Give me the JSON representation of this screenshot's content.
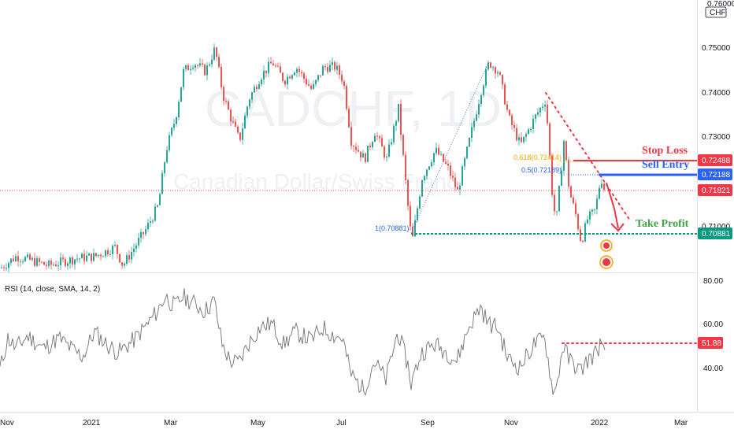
{
  "watermark": {
    "symbol": "CADCHF, 1D",
    "description": "Canadian Dollar/Swiss Franc"
  },
  "price_axis": {
    "currency": "CHF",
    "top_partial": "0.76000",
    "ticks": [
      "0.75000",
      "0.74000",
      "0.73000"
    ],
    "hidden_tick": "0.71000"
  },
  "labels": {
    "stop_loss": {
      "text": "Stop Loss",
      "value": "0.72488"
    },
    "sell_entry": {
      "text": "Sell Entry",
      "value": "0.72188"
    },
    "take_profit": {
      "text": "Take Profit",
      "value": "0.70881"
    },
    "current_price": "0.71821",
    "fib_0618": "0.618(0.72414)",
    "fib_05": "0.5(0.72189)",
    "fib_1": "1(0.70881)"
  },
  "rsi": {
    "title": "RSI (14, close, SMA, 14, 2)",
    "ticks": [
      "80.00",
      "60.00",
      "40.00"
    ],
    "level_label": "51.88"
  },
  "time_axis": [
    "Nov",
    "2021",
    "Mar",
    "May",
    "Jul",
    "Sep",
    "Nov",
    "2022",
    "Mar"
  ],
  "colors": {
    "up": "#26a69a",
    "down": "#ef5350",
    "stop": "#f23645",
    "entry": "#2962ff",
    "tp": "#089981",
    "rsi": "#7e7e7e",
    "fib": "#f7a600"
  },
  "chart_data": [
    {
      "type": "candlestick",
      "title": "CADCHF, 1D",
      "subtitle": "Canadian Dollar/Swiss Franc",
      "ylabel": "CHF",
      "ylim": [
        0.7025,
        0.7615
      ],
      "x_ticks": [
        "Nov",
        "2021",
        "Mar",
        "May",
        "Jul",
        "Sep",
        "Nov",
        "2022",
        "Mar"
      ],
      "y_ticks": [
        0.75,
        0.74,
        0.73
      ],
      "anchors": [
        [
          0,
          0.7035
        ],
        [
          20,
          0.706
        ],
        [
          60,
          0.704
        ],
        [
          95,
          0.7055
        ],
        [
          120,
          0.706
        ],
        [
          145,
          0.708
        ],
        [
          155,
          0.704
        ],
        [
          185,
          0.712
        ],
        [
          200,
          0.717
        ],
        [
          210,
          0.729
        ],
        [
          222,
          0.736
        ],
        [
          232,
          0.746
        ],
        [
          245,
          0.748
        ],
        [
          260,
          0.746
        ],
        [
          272,
          0.751
        ],
        [
          282,
          0.741
        ],
        [
          292,
          0.736
        ],
        [
          303,
          0.731
        ],
        [
          315,
          0.74
        ],
        [
          330,
          0.745
        ],
        [
          345,
          0.748
        ],
        [
          360,
          0.744
        ],
        [
          375,
          0.747
        ],
        [
          395,
          0.742
        ],
        [
          410,
          0.747
        ],
        [
          425,
          0.747
        ],
        [
          435,
          0.744
        ],
        [
          445,
          0.731
        ],
        [
          462,
          0.727
        ],
        [
          475,
          0.733
        ],
        [
          490,
          0.727
        ],
        [
          505,
          0.738
        ],
        [
          518,
          0.715
        ],
        [
          522,
          0.7088
        ],
        [
          535,
          0.723
        ],
        [
          552,
          0.729
        ],
        [
          568,
          0.725
        ],
        [
          580,
          0.72
        ],
        [
          595,
          0.731
        ],
        [
          610,
          0.742
        ],
        [
          620,
          0.748
        ],
        [
          632,
          0.746
        ],
        [
          645,
          0.736
        ],
        [
          660,
          0.73
        ],
        [
          678,
          0.736
        ],
        [
          692,
          0.74
        ],
        [
          700,
          0.72
        ],
        [
          705,
          0.713
        ],
        [
          715,
          0.731
        ],
        [
          722,
          0.72
        ],
        [
          730,
          0.715
        ],
        [
          737,
          0.709
        ],
        [
          745,
          0.714
        ],
        [
          755,
          0.716
        ],
        [
          762,
          0.7232
        ],
        [
          768,
          0.7195
        ]
      ],
      "annotations": [
        {
          "text": "Stop Loss",
          "y": 0.72488
        },
        {
          "text": "Sell Entry",
          "y": 0.72188
        },
        {
          "text": "Take Profit",
          "y": 0.70881
        },
        {
          "text": "0.618(0.72414)",
          "y": 0.72414
        },
        {
          "text": "0.5(0.72189)",
          "y": 0.72189
        },
        {
          "text": "1(0.70881)",
          "y": 0.70881
        }
      ],
      "current_price": 0.71821
    },
    {
      "type": "line",
      "title": "RSI (14, close, SMA, 14, 2)",
      "ylim": [
        20,
        85
      ],
      "y_ticks": [
        80,
        60,
        40
      ],
      "level": 51.88,
      "anchors": [
        [
          0,
          40
        ],
        [
          10,
          55
        ],
        [
          20,
          50
        ],
        [
          35,
          56
        ],
        [
          55,
          50
        ],
        [
          75,
          55
        ],
        [
          90,
          50
        ],
        [
          105,
          46
        ],
        [
          120,
          58
        ],
        [
          135,
          52
        ],
        [
          150,
          48
        ],
        [
          170,
          54
        ],
        [
          188,
          62
        ],
        [
          200,
          68
        ],
        [
          210,
          75
        ],
        [
          222,
          70
        ],
        [
          232,
          75
        ],
        [
          245,
          72
        ],
        [
          260,
          68
        ],
        [
          272,
          73
        ],
        [
          282,
          52
        ],
        [
          292,
          44
        ],
        [
          303,
          43
        ],
        [
          315,
          52
        ],
        [
          330,
          60
        ],
        [
          345,
          62
        ],
        [
          360,
          52
        ],
        [
          375,
          58
        ],
        [
          395,
          54
        ],
        [
          410,
          60
        ],
        [
          425,
          56
        ],
        [
          435,
          55
        ],
        [
          445,
          38
        ],
        [
          462,
          30
        ],
        [
          475,
          44
        ],
        [
          490,
          35
        ],
        [
          505,
          58
        ],
        [
          518,
          42
        ],
        [
          522,
          33
        ],
        [
          535,
          48
        ],
        [
          552,
          52
        ],
        [
          568,
          48
        ],
        [
          580,
          44
        ],
        [
          595,
          60
        ],
        [
          610,
          70
        ],
        [
          620,
          62
        ],
        [
          632,
          60
        ],
        [
          645,
          45
        ],
        [
          660,
          41
        ],
        [
          678,
          52
        ],
        [
          692,
          55
        ],
        [
          700,
          34
        ],
        [
          705,
          28
        ],
        [
          715,
          52
        ],
        [
          722,
          45
        ],
        [
          730,
          42
        ],
        [
          737,
          39
        ],
        [
          745,
          44
        ],
        [
          755,
          47
        ],
        [
          762,
          52
        ],
        [
          768,
          46
        ]
      ]
    }
  ]
}
